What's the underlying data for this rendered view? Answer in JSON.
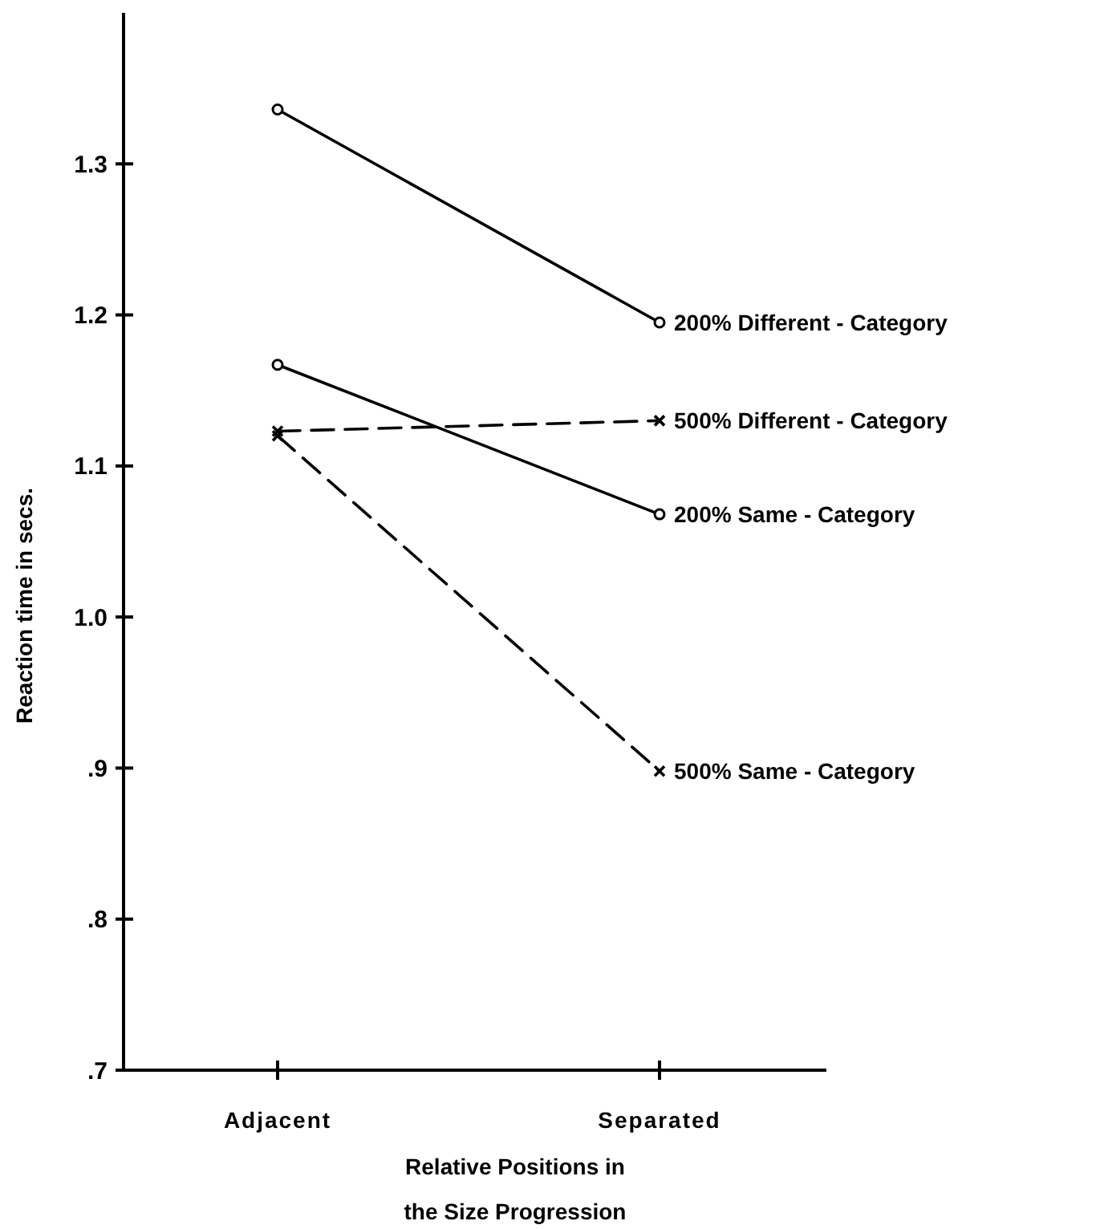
{
  "chart_data": {
    "type": "line",
    "xlabel": "Relative Positions in\nthe Size Progression",
    "ylabel": "Reaction time in secs.",
    "categories": [
      "Adjacent",
      "Separated"
    ],
    "ylim": [
      0.7,
      1.4
    ],
    "yticks": [
      {
        "value": 0.7,
        "label": ".7"
      },
      {
        "value": 0.8,
        "label": ".8"
      },
      {
        "value": 0.9,
        "label": ".9"
      },
      {
        "value": 1.0,
        "label": "1.0"
      },
      1.1,
      1.2,
      1.3
    ],
    "grid": false,
    "series": [
      {
        "name": "200% Different - Category",
        "color": "#000000",
        "marker": "circle",
        "line_style": "solid",
        "values": [
          1.336,
          1.195
        ]
      },
      {
        "name": "500% Different - Category",
        "color": "#000000",
        "marker": "cross",
        "line_style": "dashed",
        "values": [
          1.123,
          1.13
        ]
      },
      {
        "name": "200% Same - Category",
        "color": "#000000",
        "marker": "circle",
        "line_style": "solid",
        "values": [
          1.167,
          1.068
        ]
      },
      {
        "name": "500% Same - Category",
        "color": "#000000",
        "marker": "cross",
        "line_style": "dashed",
        "values": [
          1.12,
          0.898
        ]
      }
    ]
  }
}
